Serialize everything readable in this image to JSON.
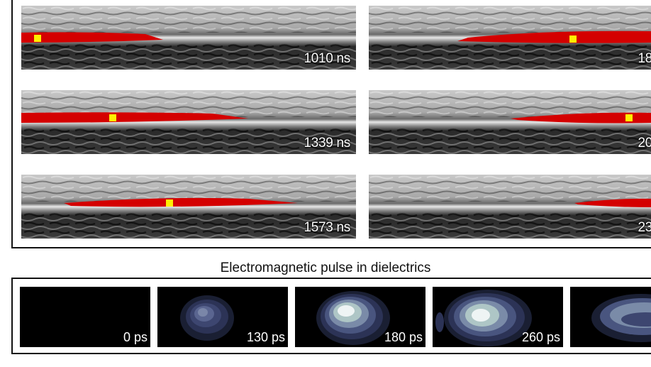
{
  "radar_panels": [
    {
      "time_label": "1010 ns"
    },
    {
      "time_label": "18"
    },
    {
      "time_label": "1339 ns"
    },
    {
      "time_label": "20"
    },
    {
      "time_label": "1573 ns"
    },
    {
      "time_label": "23"
    }
  ],
  "pulse_section": {
    "title": "Electromagnetic pulse in dielectrics",
    "frames": [
      {
        "time_label": "0 ps"
      },
      {
        "time_label": "130 ps"
      },
      {
        "time_label": "180 ps"
      },
      {
        "time_label": "260 ps"
      },
      {
        "time_label": ""
      }
    ]
  },
  "colors": {
    "wave_highlight": "#d40000",
    "marker": "#ffee00",
    "pulse_core": "#eef4f4",
    "pulse_edge": "#3d4670"
  }
}
